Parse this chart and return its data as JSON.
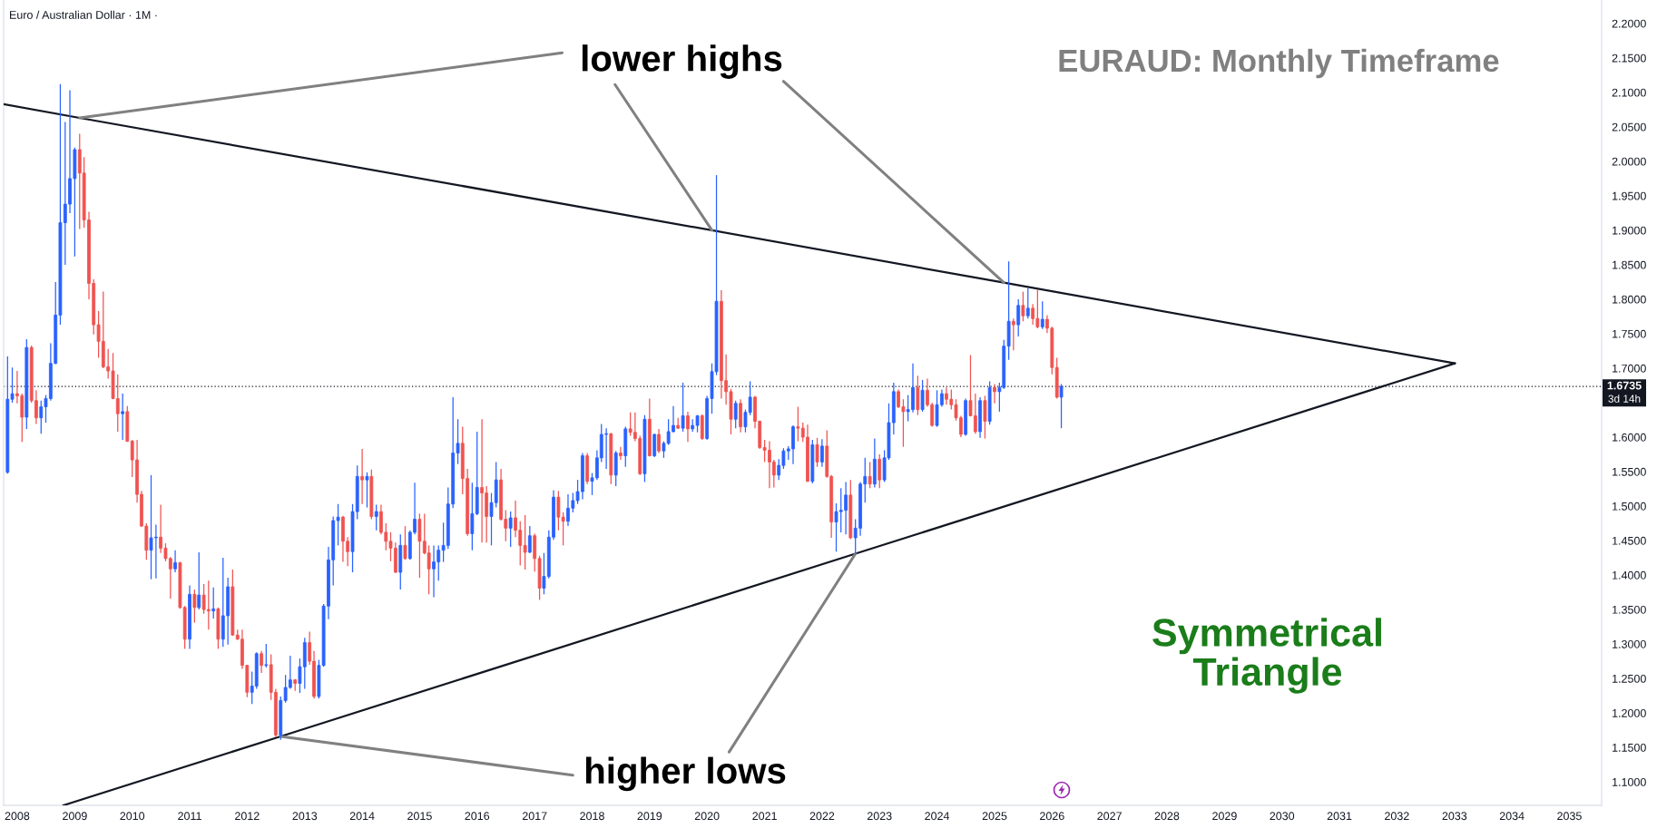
{
  "chart_data": {
    "type": "candlestick",
    "title": "Euro / Australian Dollar · 1M ·",
    "subtitle": "EURAUD: Monthly Timeframe",
    "x": [
      "2007-11",
      "2007-12",
      "2008-01",
      "2008-02",
      "2008-03",
      "2008-04",
      "2008-05",
      "2008-06",
      "2008-07",
      "2008-08",
      "2008-09",
      "2008-10",
      "2008-11",
      "2008-12",
      "2009-01",
      "2009-02",
      "2009-03",
      "2009-04",
      "2009-05",
      "2009-06",
      "2009-07",
      "2009-08",
      "2009-09",
      "2009-10",
      "2009-11",
      "2009-12",
      "2010-01",
      "2010-02",
      "2010-03",
      "2010-04",
      "2010-05",
      "2010-06",
      "2010-07",
      "2010-08",
      "2010-09",
      "2010-10",
      "2010-11",
      "2010-12",
      "2011-01",
      "2011-02",
      "2011-03",
      "2011-04",
      "2011-05",
      "2011-06",
      "2011-07",
      "2011-08",
      "2011-09",
      "2011-10",
      "2011-11",
      "2011-12",
      "2012-01",
      "2012-02",
      "2012-03",
      "2012-04",
      "2012-05",
      "2012-06",
      "2012-07",
      "2012-08",
      "2012-09",
      "2012-10",
      "2012-11",
      "2012-12",
      "2013-01",
      "2013-02",
      "2013-03",
      "2013-04",
      "2013-05",
      "2013-06",
      "2013-07",
      "2013-08",
      "2013-09",
      "2013-10",
      "2013-11",
      "2013-12",
      "2014-01",
      "2014-02",
      "2014-03",
      "2014-04",
      "2014-05",
      "2014-06",
      "2014-07",
      "2014-08",
      "2014-09",
      "2014-10",
      "2014-11",
      "2014-12",
      "2015-01",
      "2015-02",
      "2015-03",
      "2015-04",
      "2015-05",
      "2015-06",
      "2015-07",
      "2015-08",
      "2015-09",
      "2015-10",
      "2015-11",
      "2015-12",
      "2016-01",
      "2016-02",
      "2016-03",
      "2016-04",
      "2016-05",
      "2016-06",
      "2016-07",
      "2016-08",
      "2016-09",
      "2016-10",
      "2016-11",
      "2016-12",
      "2017-01",
      "2017-02",
      "2017-03",
      "2017-04",
      "2017-05",
      "2017-06",
      "2017-07",
      "2017-08",
      "2017-09",
      "2017-10",
      "2017-11",
      "2017-12",
      "2018-01",
      "2018-02",
      "2018-03",
      "2018-04",
      "2018-05",
      "2018-06",
      "2018-07",
      "2018-08",
      "2018-09",
      "2018-10",
      "2018-11",
      "2018-12",
      "2019-01",
      "2019-02",
      "2019-03",
      "2019-04",
      "2019-05",
      "2019-06",
      "2019-07",
      "2019-08",
      "2019-09",
      "2019-10",
      "2019-11",
      "2019-12",
      "2020-01",
      "2020-02",
      "2020-03",
      "2020-04",
      "2020-05",
      "2020-06",
      "2020-07",
      "2020-08",
      "2020-09",
      "2020-10",
      "2020-11",
      "2020-12",
      "2021-01",
      "2021-02",
      "2021-03",
      "2021-04",
      "2021-05",
      "2021-06",
      "2021-07",
      "2021-08",
      "2021-09",
      "2021-10",
      "2021-11",
      "2021-12",
      "2022-01",
      "2022-02",
      "2022-03",
      "2022-04",
      "2022-05",
      "2022-06",
      "2022-07",
      "2022-08",
      "2022-09",
      "2022-10",
      "2022-11",
      "2022-12",
      "2023-01",
      "2023-02",
      "2023-03",
      "2023-04",
      "2023-05",
      "2023-06",
      "2023-07",
      "2023-08",
      "2023-09",
      "2023-10",
      "2023-11",
      "2023-12",
      "2024-01",
      "2024-02",
      "2024-03",
      "2024-04",
      "2024-05",
      "2024-06",
      "2024-07",
      "2024-08",
      "2024-09",
      "2024-10",
      "2024-11",
      "2024-12",
      "2025-01",
      "2025-02",
      "2025-03",
      "2025-04",
      "2025-05",
      "2025-06",
      "2025-07",
      "2025-08",
      "2025-09",
      "2025-10",
      "2025-11",
      "2025-12",
      "2026-01",
      "2026-02",
      "2026-03"
    ],
    "ohlc": [
      [
        1.549,
        1.717,
        1.547,
        1.655
      ],
      [
        1.655,
        1.701,
        1.65,
        1.663
      ],
      [
        1.663,
        1.696,
        1.649,
        1.66
      ],
      [
        1.66,
        1.663,
        1.593,
        1.629
      ],
      [
        1.629,
        1.742,
        1.612,
        1.73
      ],
      [
        1.73,
        1.733,
        1.65,
        1.653
      ],
      [
        1.653,
        1.668,
        1.619,
        1.628
      ],
      [
        1.628,
        1.653,
        1.605,
        1.644
      ],
      [
        1.644,
        1.661,
        1.621,
        1.656
      ],
      [
        1.656,
        1.736,
        1.653,
        1.707
      ],
      [
        1.707,
        1.825,
        1.706,
        1.777
      ],
      [
        1.777,
        2.112,
        1.763,
        1.911
      ],
      [
        1.911,
        2.057,
        1.85,
        1.938
      ],
      [
        1.938,
        2.103,
        1.925,
        1.975
      ],
      [
        1.975,
        2.02,
        1.862,
        2.017
      ],
      [
        2.017,
        2.04,
        1.902,
        1.983
      ],
      [
        1.983,
        2.006,
        1.904,
        1.915
      ],
      [
        1.915,
        1.927,
        1.8,
        1.823
      ],
      [
        1.823,
        1.829,
        1.749,
        1.763
      ],
      [
        1.763,
        1.783,
        1.715,
        1.739
      ],
      [
        1.739,
        1.811,
        1.7,
        1.702
      ],
      [
        1.702,
        1.728,
        1.685,
        1.696
      ],
      [
        1.696,
        1.722,
        1.655,
        1.656
      ],
      [
        1.656,
        1.691,
        1.608,
        1.634
      ],
      [
        1.634,
        1.663,
        1.596,
        1.637
      ],
      [
        1.637,
        1.645,
        1.593,
        1.594
      ],
      [
        1.594,
        1.596,
        1.542,
        1.567
      ],
      [
        1.567,
        1.596,
        1.505,
        1.517
      ],
      [
        1.517,
        1.522,
        1.47,
        1.471
      ],
      [
        1.471,
        1.475,
        1.422,
        1.436
      ],
      [
        1.436,
        1.545,
        1.394,
        1.454
      ],
      [
        1.454,
        1.473,
        1.395,
        1.455
      ],
      [
        1.455,
        1.502,
        1.432,
        1.439
      ],
      [
        1.439,
        1.446,
        1.42,
        1.424
      ],
      [
        1.424,
        1.426,
        1.366,
        1.409
      ],
      [
        1.409,
        1.436,
        1.404,
        1.418
      ],
      [
        1.418,
        1.419,
        1.351,
        1.353
      ],
      [
        1.353,
        1.355,
        1.293,
        1.307
      ],
      [
        1.307,
        1.385,
        1.293,
        1.372
      ],
      [
        1.372,
        1.379,
        1.331,
        1.353
      ],
      [
        1.353,
        1.433,
        1.35,
        1.371
      ],
      [
        1.371,
        1.387,
        1.344,
        1.35
      ],
      [
        1.35,
        1.392,
        1.321,
        1.348
      ],
      [
        1.348,
        1.382,
        1.337,
        1.351
      ],
      [
        1.351,
        1.353,
        1.293,
        1.307
      ],
      [
        1.307,
        1.425,
        1.296,
        1.341
      ],
      [
        1.341,
        1.396,
        1.299,
        1.383
      ],
      [
        1.383,
        1.408,
        1.312,
        1.313
      ],
      [
        1.313,
        1.321,
        1.306,
        1.307
      ],
      [
        1.307,
        1.321,
        1.264,
        1.269
      ],
      [
        1.269,
        1.27,
        1.223,
        1.23
      ],
      [
        1.23,
        1.26,
        1.213,
        1.239
      ],
      [
        1.239,
        1.288,
        1.235,
        1.286
      ],
      [
        1.286,
        1.29,
        1.258,
        1.269
      ],
      [
        1.269,
        1.3,
        1.266,
        1.27
      ],
      [
        1.27,
        1.285,
        1.219,
        1.23
      ],
      [
        1.23,
        1.235,
        1.165,
        1.168
      ],
      [
        1.168,
        1.224,
        1.161,
        1.218
      ],
      [
        1.218,
        1.255,
        1.215,
        1.237
      ],
      [
        1.237,
        1.283,
        1.235,
        1.248
      ],
      [
        1.248,
        1.249,
        1.232,
        1.243
      ],
      [
        1.243,
        1.279,
        1.229,
        1.267
      ],
      [
        1.267,
        1.309,
        1.235,
        1.302
      ],
      [
        1.302,
        1.318,
        1.27,
        1.275
      ],
      [
        1.275,
        1.29,
        1.221,
        1.224
      ],
      [
        1.224,
        1.277,
        1.221,
        1.269
      ],
      [
        1.269,
        1.358,
        1.267,
        1.355
      ],
      [
        1.355,
        1.441,
        1.336,
        1.422
      ],
      [
        1.422,
        1.485,
        1.385,
        1.479
      ],
      [
        1.479,
        1.503,
        1.443,
        1.484
      ],
      [
        1.484,
        1.486,
        1.419,
        1.449
      ],
      [
        1.449,
        1.455,
        1.413,
        1.434
      ],
      [
        1.434,
        1.503,
        1.404,
        1.492
      ],
      [
        1.492,
        1.559,
        1.481,
        1.543
      ],
      [
        1.543,
        1.583,
        1.503,
        1.538
      ],
      [
        1.538,
        1.549,
        1.498,
        1.543
      ],
      [
        1.543,
        1.553,
        1.481,
        1.485
      ],
      [
        1.485,
        1.502,
        1.465,
        1.492
      ],
      [
        1.492,
        1.502,
        1.459,
        1.462
      ],
      [
        1.462,
        1.475,
        1.436,
        1.449
      ],
      [
        1.449,
        1.462,
        1.42,
        1.439
      ],
      [
        1.439,
        1.447,
        1.403,
        1.404
      ],
      [
        1.404,
        1.459,
        1.379,
        1.443
      ],
      [
        1.443,
        1.471,
        1.422,
        1.424
      ],
      [
        1.424,
        1.465,
        1.422,
        1.462
      ],
      [
        1.462,
        1.534,
        1.459,
        1.481
      ],
      [
        1.481,
        1.489,
        1.396,
        1.449
      ],
      [
        1.449,
        1.489,
        1.43,
        1.432
      ],
      [
        1.432,
        1.443,
        1.372,
        1.409
      ],
      [
        1.409,
        1.443,
        1.368,
        1.419
      ],
      [
        1.419,
        1.443,
        1.392,
        1.436
      ],
      [
        1.436,
        1.476,
        1.419,
        1.443
      ],
      [
        1.443,
        1.527,
        1.438,
        1.503
      ],
      [
        1.503,
        1.658,
        1.497,
        1.577
      ],
      [
        1.577,
        1.626,
        1.561,
        1.591
      ],
      [
        1.591,
        1.615,
        1.517,
        1.54
      ],
      [
        1.54,
        1.554,
        1.457,
        1.46
      ],
      [
        1.46,
        1.534,
        1.436,
        1.489
      ],
      [
        1.489,
        1.608,
        1.487,
        1.527
      ],
      [
        1.527,
        1.626,
        1.447,
        1.519
      ],
      [
        1.519,
        1.529,
        1.447,
        1.485
      ],
      [
        1.485,
        1.519,
        1.443,
        1.505
      ],
      [
        1.505,
        1.564,
        1.498,
        1.538
      ],
      [
        1.538,
        1.554,
        1.479,
        1.481
      ],
      [
        1.481,
        1.494,
        1.449,
        1.468
      ],
      [
        1.468,
        1.492,
        1.441,
        1.483
      ],
      [
        1.483,
        1.508,
        1.455,
        1.465
      ],
      [
        1.465,
        1.478,
        1.414,
        1.443
      ],
      [
        1.443,
        1.487,
        1.408,
        1.433
      ],
      [
        1.433,
        1.471,
        1.432,
        1.457
      ],
      [
        1.457,
        1.46,
        1.405,
        1.424
      ],
      [
        1.424,
        1.428,
        1.364,
        1.381
      ],
      [
        1.381,
        1.432,
        1.372,
        1.398
      ],
      [
        1.398,
        1.465,
        1.395,
        1.455
      ],
      [
        1.455,
        1.523,
        1.451,
        1.513
      ],
      [
        1.513,
        1.522,
        1.465,
        1.484
      ],
      [
        1.484,
        1.491,
        1.443,
        1.478
      ],
      [
        1.478,
        1.517,
        1.471,
        1.497
      ],
      [
        1.497,
        1.519,
        1.491,
        1.508
      ],
      [
        1.508,
        1.538,
        1.503,
        1.521
      ],
      [
        1.521,
        1.577,
        1.51,
        1.573
      ],
      [
        1.573,
        1.577,
        1.532,
        1.536
      ],
      [
        1.536,
        1.548,
        1.516,
        1.541
      ],
      [
        1.541,
        1.581,
        1.538,
        1.57
      ],
      [
        1.57,
        1.619,
        1.564,
        1.604
      ],
      [
        1.604,
        1.613,
        1.554,
        1.605
      ],
      [
        1.605,
        1.606,
        1.532,
        1.545
      ],
      [
        1.545,
        1.58,
        1.529,
        1.577
      ],
      [
        1.577,
        1.586,
        1.567,
        1.573
      ],
      [
        1.573,
        1.615,
        1.557,
        1.612
      ],
      [
        1.612,
        1.636,
        1.602,
        1.607
      ],
      [
        1.607,
        1.636,
        1.594,
        1.598
      ],
      [
        1.598,
        1.602,
        1.545,
        1.547
      ],
      [
        1.547,
        1.632,
        1.535,
        1.626
      ],
      [
        1.626,
        1.656,
        1.572,
        1.573
      ],
      [
        1.573,
        1.605,
        1.571,
        1.604
      ],
      [
        1.604,
        1.612,
        1.577,
        1.58
      ],
      [
        1.58,
        1.594,
        1.57,
        1.591
      ],
      [
        1.591,
        1.626,
        1.589,
        1.608
      ],
      [
        1.608,
        1.645,
        1.607,
        1.617
      ],
      [
        1.617,
        1.628,
        1.612,
        1.613
      ],
      [
        1.613,
        1.679,
        1.608,
        1.631
      ],
      [
        1.631,
        1.637,
        1.593,
        1.612
      ],
      [
        1.612,
        1.626,
        1.608,
        1.617
      ],
      [
        1.617,
        1.632,
        1.607,
        1.631
      ],
      [
        1.631,
        1.633,
        1.596,
        1.598
      ],
      [
        1.598,
        1.66,
        1.596,
        1.656
      ],
      [
        1.656,
        1.707,
        1.634,
        1.695
      ],
      [
        1.695,
        1.98,
        1.69,
        1.797
      ],
      [
        1.797,
        1.813,
        1.656,
        1.682
      ],
      [
        1.682,
        1.72,
        1.647,
        1.666
      ],
      [
        1.666,
        1.67,
        1.604,
        1.626
      ],
      [
        1.626,
        1.653,
        1.613,
        1.649
      ],
      [
        1.649,
        1.655,
        1.607,
        1.615
      ],
      [
        1.615,
        1.64,
        1.607,
        1.636
      ],
      [
        1.636,
        1.681,
        1.632,
        1.658
      ],
      [
        1.658,
        1.66,
        1.613,
        1.623
      ],
      [
        1.623,
        1.624,
        1.583,
        1.585
      ],
      [
        1.585,
        1.596,
        1.564,
        1.581
      ],
      [
        1.581,
        1.594,
        1.526,
        1.564
      ],
      [
        1.564,
        1.567,
        1.527,
        1.545
      ],
      [
        1.545,
        1.568,
        1.538,
        1.559
      ],
      [
        1.559,
        1.584,
        1.554,
        1.58
      ],
      [
        1.58,
        1.587,
        1.567,
        1.583
      ],
      [
        1.583,
        1.617,
        1.561,
        1.615
      ],
      [
        1.615,
        1.644,
        1.594,
        1.613
      ],
      [
        1.613,
        1.621,
        1.593,
        1.6
      ],
      [
        1.6,
        1.618,
        1.535,
        1.536
      ],
      [
        1.536,
        1.596,
        1.533,
        1.589
      ],
      [
        1.589,
        1.599,
        1.557,
        1.564
      ],
      [
        1.564,
        1.597,
        1.557,
        1.587
      ],
      [
        1.587,
        1.61,
        1.541,
        1.543
      ],
      [
        1.543,
        1.545,
        1.454,
        1.477
      ],
      [
        1.477,
        1.504,
        1.434,
        1.492
      ],
      [
        1.492,
        1.526,
        1.462,
        1.494
      ],
      [
        1.494,
        1.535,
        1.459,
        1.516
      ],
      [
        1.516,
        1.538,
        1.452,
        1.454
      ],
      [
        1.454,
        1.481,
        1.43,
        1.468
      ],
      [
        1.468,
        1.535,
        1.457,
        1.532
      ],
      [
        1.532,
        1.57,
        1.505,
        1.543
      ],
      [
        1.543,
        1.564,
        1.526,
        1.532
      ],
      [
        1.532,
        1.598,
        1.527,
        1.568
      ],
      [
        1.568,
        1.575,
        1.526,
        1.538
      ],
      [
        1.538,
        1.581,
        1.535,
        1.57
      ],
      [
        1.57,
        1.649,
        1.567,
        1.621
      ],
      [
        1.621,
        1.679,
        1.604,
        1.666
      ],
      [
        1.666,
        1.669,
        1.642,
        1.644
      ],
      [
        1.644,
        1.655,
        1.586,
        1.637
      ],
      [
        1.637,
        1.661,
        1.623,
        1.64
      ],
      [
        1.64,
        1.707,
        1.636,
        1.672
      ],
      [
        1.672,
        1.689,
        1.632,
        1.64
      ],
      [
        1.64,
        1.683,
        1.637,
        1.668
      ],
      [
        1.668,
        1.685,
        1.644,
        1.647
      ],
      [
        1.647,
        1.65,
        1.615,
        1.617
      ],
      [
        1.617,
        1.668,
        1.615,
        1.647
      ],
      [
        1.647,
        1.669,
        1.644,
        1.663
      ],
      [
        1.663,
        1.672,
        1.647,
        1.655
      ],
      [
        1.655,
        1.669,
        1.64,
        1.647
      ],
      [
        1.647,
        1.655,
        1.624,
        1.628
      ],
      [
        1.628,
        1.631,
        1.6,
        1.604
      ],
      [
        1.604,
        1.656,
        1.602,
        1.653
      ],
      [
        1.653,
        1.719,
        1.63,
        1.631
      ],
      [
        1.631,
        1.663,
        1.605,
        1.608
      ],
      [
        1.608,
        1.658,
        1.599,
        1.653
      ],
      [
        1.653,
        1.66,
        1.598,
        1.623
      ],
      [
        1.623,
        1.681,
        1.618,
        1.672
      ],
      [
        1.672,
        1.677,
        1.649,
        1.666
      ],
      [
        1.666,
        1.679,
        1.637,
        1.672
      ],
      [
        1.672,
        1.741,
        1.67,
        1.732
      ],
      [
        1.732,
        1.855,
        1.712,
        1.768
      ],
      [
        1.768,
        1.772,
        1.726,
        1.763
      ],
      [
        1.763,
        1.8,
        1.746,
        1.791
      ],
      [
        1.791,
        1.811,
        1.768,
        1.776
      ],
      [
        1.776,
        1.816,
        1.772,
        1.787
      ],
      [
        1.787,
        1.793,
        1.763,
        1.772
      ],
      [
        1.772,
        1.814,
        1.758,
        1.76
      ],
      [
        1.76,
        1.797,
        1.757,
        1.771
      ],
      [
        1.771,
        1.777,
        1.751,
        1.758
      ],
      [
        1.758,
        1.76,
        1.691,
        1.701
      ],
      [
        1.701,
        1.715,
        1.656,
        1.658
      ],
      [
        1.658,
        1.677,
        1.613,
        1.6735
      ]
    ],
    "colors": [
      "#2962ff",
      "#2962ff",
      "#ef5350",
      "#ef5350",
      "#2962ff",
      "#ef5350",
      "#ef5350",
      "#2962ff",
      "#2962ff",
      "#2962ff",
      "#2962ff",
      "#2962ff",
      "#2962ff",
      "#2962ff",
      "#2962ff",
      "#ef5350",
      "#ef5350",
      "#ef5350",
      "#ef5350",
      "#ef5350",
      "#ef5350",
      "#ef5350",
      "#ef5350",
      "#ef5350",
      "#2962ff",
      "#ef5350",
      "#ef5350",
      "#ef5350",
      "#ef5350",
      "#ef5350",
      "#2962ff",
      "#2962ff",
      "#ef5350",
      "#ef5350",
      "#ef5350",
      "#2962ff",
      "#ef5350",
      "#ef5350",
      "#2962ff",
      "#ef5350",
      "#2962ff",
      "#ef5350",
      "#ef5350",
      "#2962ff",
      "#ef5350",
      "#2962ff",
      "#2962ff",
      "#ef5350",
      "#ef5350",
      "#ef5350",
      "#ef5350",
      "#2962ff",
      "#2962ff",
      "#ef5350",
      "#2962ff",
      "#ef5350",
      "#ef5350",
      "#2962ff",
      "#2962ff",
      "#2962ff",
      "#ef5350",
      "#2962ff",
      "#2962ff",
      "#ef5350",
      "#ef5350",
      "#2962ff",
      "#2962ff",
      "#2962ff",
      "#2962ff",
      "#2962ff",
      "#ef5350",
      "#ef5350",
      "#2962ff",
      "#2962ff",
      "#ef5350",
      "#2962ff",
      "#ef5350",
      "#2962ff",
      "#ef5350",
      "#ef5350",
      "#ef5350",
      "#ef5350",
      "#2962ff",
      "#ef5350",
      "#2962ff",
      "#2962ff",
      "#ef5350",
      "#ef5350",
      "#ef5350",
      "#2962ff",
      "#2962ff",
      "#2962ff",
      "#2962ff",
      "#2962ff",
      "#2962ff",
      "#ef5350",
      "#ef5350",
      "#2962ff",
      "#2962ff",
      "#ef5350",
      "#ef5350",
      "#2962ff",
      "#2962ff",
      "#ef5350",
      "#ef5350",
      "#2962ff",
      "#ef5350",
      "#ef5350",
      "#ef5350",
      "#2962ff",
      "#ef5350",
      "#ef5350",
      "#2962ff",
      "#2962ff",
      "#2962ff",
      "#ef5350",
      "#ef5350",
      "#2962ff",
      "#2962ff",
      "#2962ff",
      "#2962ff",
      "#ef5350",
      "#2962ff",
      "#2962ff",
      "#2962ff",
      "#2962ff",
      "#ef5350",
      "#2962ff",
      "#ef5350",
      "#2962ff",
      "#ef5350",
      "#ef5350",
      "#ef5350",
      "#2962ff",
      "#ef5350",
      "#2962ff",
      "#ef5350",
      "#2962ff",
      "#2962ff",
      "#2962ff",
      "#ef5350",
      "#2962ff",
      "#ef5350",
      "#2962ff",
      "#2962ff",
      "#ef5350",
      "#2962ff",
      "#2962ff",
      "#2962ff",
      "#ef5350",
      "#ef5350",
      "#ef5350",
      "#2962ff",
      "#ef5350",
      "#2962ff",
      "#2962ff",
      "#ef5350",
      "#ef5350",
      "#ef5350",
      "#ef5350",
      "#ef5350",
      "#2962ff",
      "#2962ff",
      "#2962ff",
      "#2962ff",
      "#ef5350",
      "#ef5350",
      "#ef5350",
      "#2962ff",
      "#ef5350",
      "#2962ff",
      "#ef5350",
      "#ef5350",
      "#2962ff",
      "#2962ff",
      "#2962ff",
      "#ef5350",
      "#2962ff",
      "#2962ff",
      "#2962ff",
      "#ef5350",
      "#2962ff",
      "#ef5350",
      "#2962ff",
      "#2962ff",
      "#2962ff",
      "#ef5350",
      "#ef5350",
      "#2962ff",
      "#2962ff",
      "#ef5350",
      "#2962ff",
      "#ef5350",
      "#ef5350",
      "#2962ff",
      "#2962ff",
      "#ef5350",
      "#ef5350",
      "#ef5350",
      "#ef5350",
      "#2962ff",
      "#ef5350",
      "#ef5350",
      "#2962ff",
      "#ef5350",
      "#2962ff",
      "#ef5350",
      "#2962ff",
      "#2962ff",
      "#2962ff",
      "#ef5350",
      "#2962ff",
      "#ef5350",
      "#2962ff",
      "#ef5350",
      "#ef5350",
      "#2962ff",
      "#ef5350",
      "#ef5350",
      "#ef5350",
      "#2962ff"
    ],
    "series": [
      {
        "type": "line",
        "color": "#131722",
        "x": [
          "2007-10-07",
          "2009-02-01",
          "2020-02-01",
          "2025-03-01",
          "2033-01-04"
        ],
        "values": [
          2.083,
          2.063,
          1.9,
          1.824,
          1.707
        ]
      },
      {
        "type": "line",
        "color": "#131722",
        "x": [
          "2008-10-20",
          "2012-08-01",
          "2022-08-01",
          "2033-01-04"
        ],
        "values": [
          1.066,
          1.166,
          1.431,
          1.707
        ]
      }
    ],
    "ref_lines": [
      {
        "axis": "y",
        "value": 1.6735,
        "label": "1.6735",
        "line_style": "dotted",
        "color": "#131722"
      }
    ],
    "annotations": [
      {
        "text": "lower highs",
        "x": "2020-02-01",
        "y": 1.9
      },
      {
        "text": "higher lows",
        "x": "2022-08-01",
        "y": 1.431
      },
      "Symmetrical\nTriangle",
      "3d 14h"
    ],
    "xlim": [
      "2007-10-07",
      "2035-07-25"
    ],
    "xticks": [
      "2008",
      "2009",
      "2010",
      "2011",
      "2012",
      "2013",
      "2014",
      "2015",
      "2016",
      "2017",
      "2018",
      "2019",
      "2020",
      "2021",
      "2022",
      "2023",
      "2024",
      "2025",
      "2026",
      "2027",
      "2028",
      "2029",
      "2030",
      "2031",
      "2032",
      "2033",
      "2034",
      "2035"
    ],
    "ylim": [
      1.066,
      2.234
    ],
    "yticks": [
      {
        "value": 1.1,
        "label": "1.1000"
      },
      {
        "value": 1.15,
        "label": "1.1500"
      },
      {
        "value": 1.2,
        "label": "1.2000"
      },
      {
        "value": 1.25,
        "label": "1.2500"
      },
      {
        "value": 1.3,
        "label": "1.3000"
      },
      {
        "value": 1.35,
        "label": "1.3500"
      },
      {
        "value": 1.4,
        "label": "1.4000"
      },
      {
        "value": 1.45,
        "label": "1.4500"
      },
      {
        "value": 1.5,
        "label": "1.5000"
      },
      {
        "value": 1.55,
        "label": "1.5500"
      },
      {
        "value": 1.6,
        "label": "1.6000"
      },
      {
        "value": 1.7,
        "label": "1.7000"
      },
      {
        "value": 1.75,
        "label": "1.7500"
      },
      {
        "value": 1.8,
        "label": "1.8000"
      },
      {
        "value": 1.85,
        "label": "1.8500"
      },
      {
        "value": 1.9,
        "label": "1.9000"
      },
      {
        "value": 1.95,
        "label": "1.9500"
      },
      {
        "value": 2.0,
        "label": "2.0000"
      },
      {
        "value": 2.05,
        "label": "2.0500"
      },
      {
        "value": 2.1,
        "label": "2.1000"
      },
      {
        "value": 2.15,
        "label": "2.1500"
      },
      {
        "value": 2.2,
        "label": "2.2000"
      }
    ]
  }
}
